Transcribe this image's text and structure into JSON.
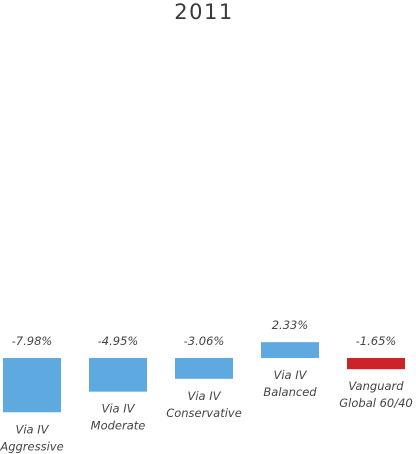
{
  "chart_data": {
    "type": "bar",
    "title": "2011",
    "categories": [
      [
        "Via IV",
        "Aggressive"
      ],
      [
        "Via IV",
        "Moderate"
      ],
      [
        "Via IV",
        "Conservative"
      ],
      [
        "Via IV",
        "Balanced"
      ],
      [
        "Vanguard",
        "Global 60/40"
      ]
    ],
    "values": [
      -7.98,
      -4.95,
      -3.06,
      2.33,
      -1.65
    ],
    "value_labels": [
      "-7.98%",
      "-4.95%",
      "-3.06%",
      "2.33%",
      "-1.65%"
    ],
    "colors": [
      "#5ea9df",
      "#5ea9df",
      "#5ea9df",
      "#5ea9df",
      "#cc2229"
    ],
    "xlabel": "",
    "ylabel": "",
    "grid": false,
    "legend": "none"
  }
}
